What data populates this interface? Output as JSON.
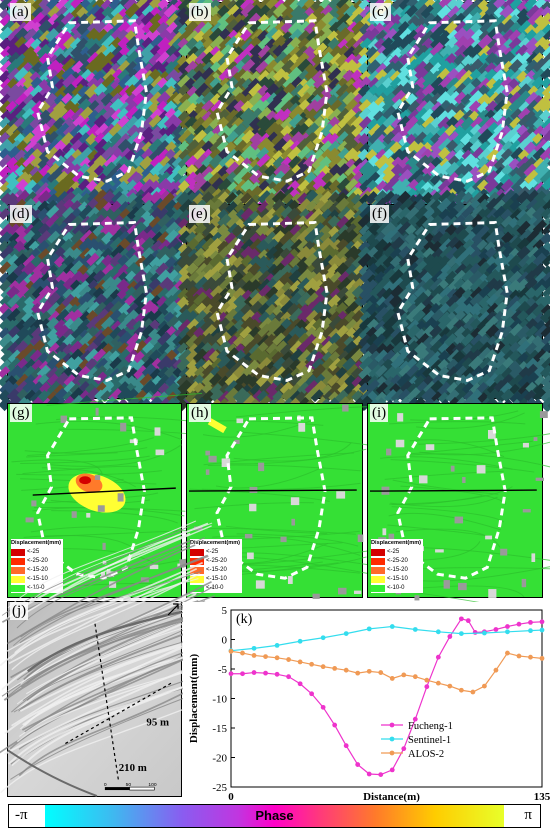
{
  "panel_labels": {
    "a": "(a)",
    "b": "(b)",
    "c": "(c)",
    "d": "(d)",
    "e": "(e)",
    "f": "(f)",
    "g": "(g)",
    "h": "(h)",
    "i": "(i)",
    "j": "(j)",
    "k": "(k)"
  },
  "legend": {
    "title": "Displacement(mm)",
    "items": [
      "<-25",
      "<-25-20",
      "<-15-20",
      "<-15-10",
      "<-10-0"
    ],
    "colors": [
      "#d40000",
      "#ff2a00",
      "#ff6a2a",
      "#ffff33",
      "#33ee33"
    ]
  },
  "dem": {
    "label_95": "95 m",
    "label_210": "210 m",
    "scale_0": "0",
    "scale_50": "50",
    "scale_100": "100"
  },
  "colorbar": {
    "min": "-π",
    "max": "π",
    "title": "Phase"
  },
  "chart_data": {
    "type": "line",
    "xlabel": "Distance(m)",
    "ylabel": "Displacement(mm)",
    "xlim": [
      0,
      135
    ],
    "ylim": [
      -25,
      5
    ],
    "x_ticks": [
      "0",
      "135"
    ],
    "y_ticks": [
      "5",
      "0",
      "-5",
      "-10",
      "-15",
      "-20",
      "-25"
    ],
    "series": [
      {
        "name": "Fucheng-1",
        "color": "#ee33cc",
        "x": [
          0,
          5,
          10,
          15,
          20,
          25,
          30,
          35,
          40,
          45,
          50,
          55,
          60,
          65,
          70,
          75,
          80,
          85,
          90,
          95,
          100,
          103,
          106,
          110,
          115,
          120,
          125,
          130,
          135
        ],
        "y": [
          -5.8,
          -5.8,
          -5.6,
          -5.7,
          -5.9,
          -6.3,
          -7.5,
          -9.2,
          -11.5,
          -14.5,
          -18.0,
          -21.2,
          -22.8,
          -22.9,
          -22.1,
          -18.5,
          -13.5,
          -8.0,
          -3.0,
          0.5,
          3.5,
          3.2,
          1.2,
          1.3,
          1.7,
          2.2,
          2.6,
          2.9,
          3.0
        ]
      },
      {
        "name": "Sentinel-1",
        "color": "#33ddee",
        "x": [
          0,
          10,
          20,
          30,
          40,
          50,
          60,
          70,
          80,
          90,
          100,
          110,
          120,
          130,
          135
        ],
        "y": [
          -1.9,
          -1.5,
          -1.0,
          -0.3,
          0.3,
          1.0,
          1.8,
          2.2,
          1.7,
          1.3,
          1.0,
          1.1,
          1.3,
          1.5,
          1.6
        ]
      },
      {
        "name": "ALOS-2",
        "color": "#f09a55",
        "x": [
          0,
          5,
          10,
          15,
          20,
          25,
          30,
          35,
          40,
          45,
          50,
          55,
          60,
          65,
          70,
          75,
          80,
          85,
          90,
          95,
          100,
          105,
          110,
          115,
          120,
          125,
          130,
          135
        ],
        "y": [
          -2.0,
          -2.3,
          -2.7,
          -2.9,
          -3.1,
          -3.4,
          -3.8,
          -4.2,
          -4.6,
          -4.9,
          -5.2,
          -5.7,
          -5.4,
          -5.6,
          -6.6,
          -6.0,
          -6.3,
          -6.9,
          -7.4,
          -7.9,
          -8.6,
          -8.9,
          -7.9,
          -5.2,
          -2.3,
          -2.8,
          -3.0,
          -3.2
        ]
      }
    ]
  }
}
